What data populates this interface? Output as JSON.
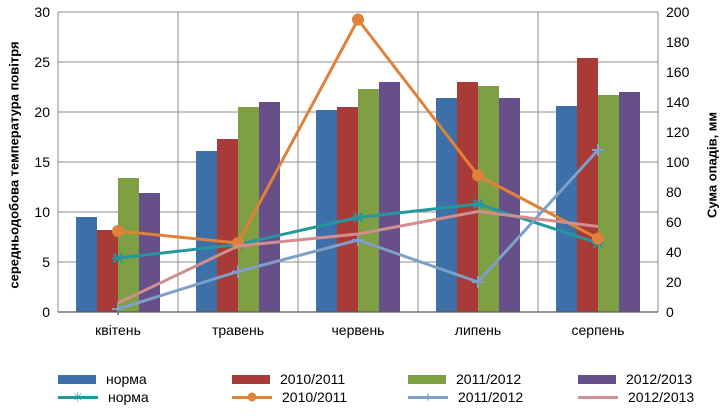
{
  "chart_data": {
    "type": "bar+line",
    "categories": [
      "квітень",
      "травень",
      "червень",
      "липень",
      "серпень"
    ],
    "ylabel_left": "середньодобова температура повітря",
    "ylabel_right": "Сума опадів, мм",
    "ylim_left": [
      0,
      30
    ],
    "yticks_left": [
      "0",
      "5",
      "10",
      "15",
      "20",
      "25",
      "30"
    ],
    "ylim_right": [
      0,
      200
    ],
    "yticks_right": [
      "0",
      "20",
      "40",
      "60",
      "80",
      "100",
      "120",
      "140",
      "160",
      "180",
      "200"
    ],
    "grid": "vertical-and-horizontal",
    "legend_position": "bottom",
    "bar_series": [
      {
        "name": "норма",
        "color": "#3d70a8",
        "values": [
          9.5,
          16.1,
          20.2,
          21.4,
          20.6
        ]
      },
      {
        "name": "2010/2011",
        "color": "#a83a37",
        "values": [
          8.2,
          17.3,
          20.5,
          23.0,
          25.4
        ]
      },
      {
        "name": "2011/2012",
        "color": "#7ea042",
        "values": [
          13.4,
          20.5,
          22.3,
          22.6,
          21.7
        ]
      },
      {
        "name": "2012/2013",
        "color": "#67508a",
        "values": [
          11.9,
          21.0,
          23.0,
          21.4,
          22.0
        ]
      }
    ],
    "line_series": [
      {
        "name": "норма",
        "color": "#23979e",
        "marker": "asterisk",
        "values": [
          36,
          45,
          63,
          72,
          46
        ]
      },
      {
        "name": "2010/2011",
        "color": "#e0813a",
        "marker": "circle",
        "values": [
          54,
          46,
          195,
          91,
          49
        ]
      },
      {
        "name": "2011/2012",
        "color": "#7d9fc9",
        "marker": "plus",
        "values": [
          2,
          27,
          48,
          20,
          108
        ]
      },
      {
        "name": "2012/2013",
        "color": "#d28d8e",
        "marker": "none",
        "values": [
          6,
          44,
          52,
          67,
          57
        ]
      }
    ]
  }
}
